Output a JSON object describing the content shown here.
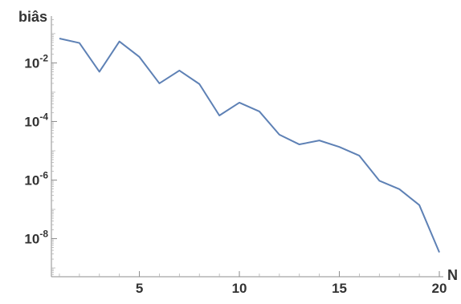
{
  "chart_data": {
    "type": "line",
    "x_label": "N",
    "y_label": "biâs",
    "y_scale": "log",
    "xlim": [
      0.6,
      20.2
    ],
    "ylim_log10": [
      -9.3,
      -0.4
    ],
    "x_ticks": [
      {
        "value": 5,
        "label": "5"
      },
      {
        "value": 10,
        "label": "10"
      },
      {
        "value": 15,
        "label": "15"
      },
      {
        "value": 20,
        "label": "20"
      }
    ],
    "y_ticks": [
      {
        "value": -2,
        "base": "10",
        "exp": "-2"
      },
      {
        "value": -4,
        "base": "10",
        "exp": "-4"
      },
      {
        "value": -6,
        "base": "10",
        "exp": "-6"
      },
      {
        "value": -8,
        "base": "10",
        "exp": "-8"
      }
    ],
    "grid": false,
    "color": "#5e81b5",
    "series": [
      {
        "x": [
          1,
          2,
          3,
          4,
          5,
          6,
          7,
          8,
          9,
          10,
          11,
          12,
          13,
          14,
          15,
          16,
          17,
          18,
          19,
          20
        ],
        "y": [
          0.068,
          0.048,
          0.005,
          0.054,
          0.016,
          0.002,
          0.0055,
          0.0019,
          0.00016,
          0.00044,
          0.00022,
          3.55e-05,
          1.65e-05,
          2.25e-05,
          1.35e-05,
          6.8e-06,
          9.5e-07,
          4.9e-07,
          1.4e-07,
          3.4e-09
        ]
      }
    ]
  }
}
